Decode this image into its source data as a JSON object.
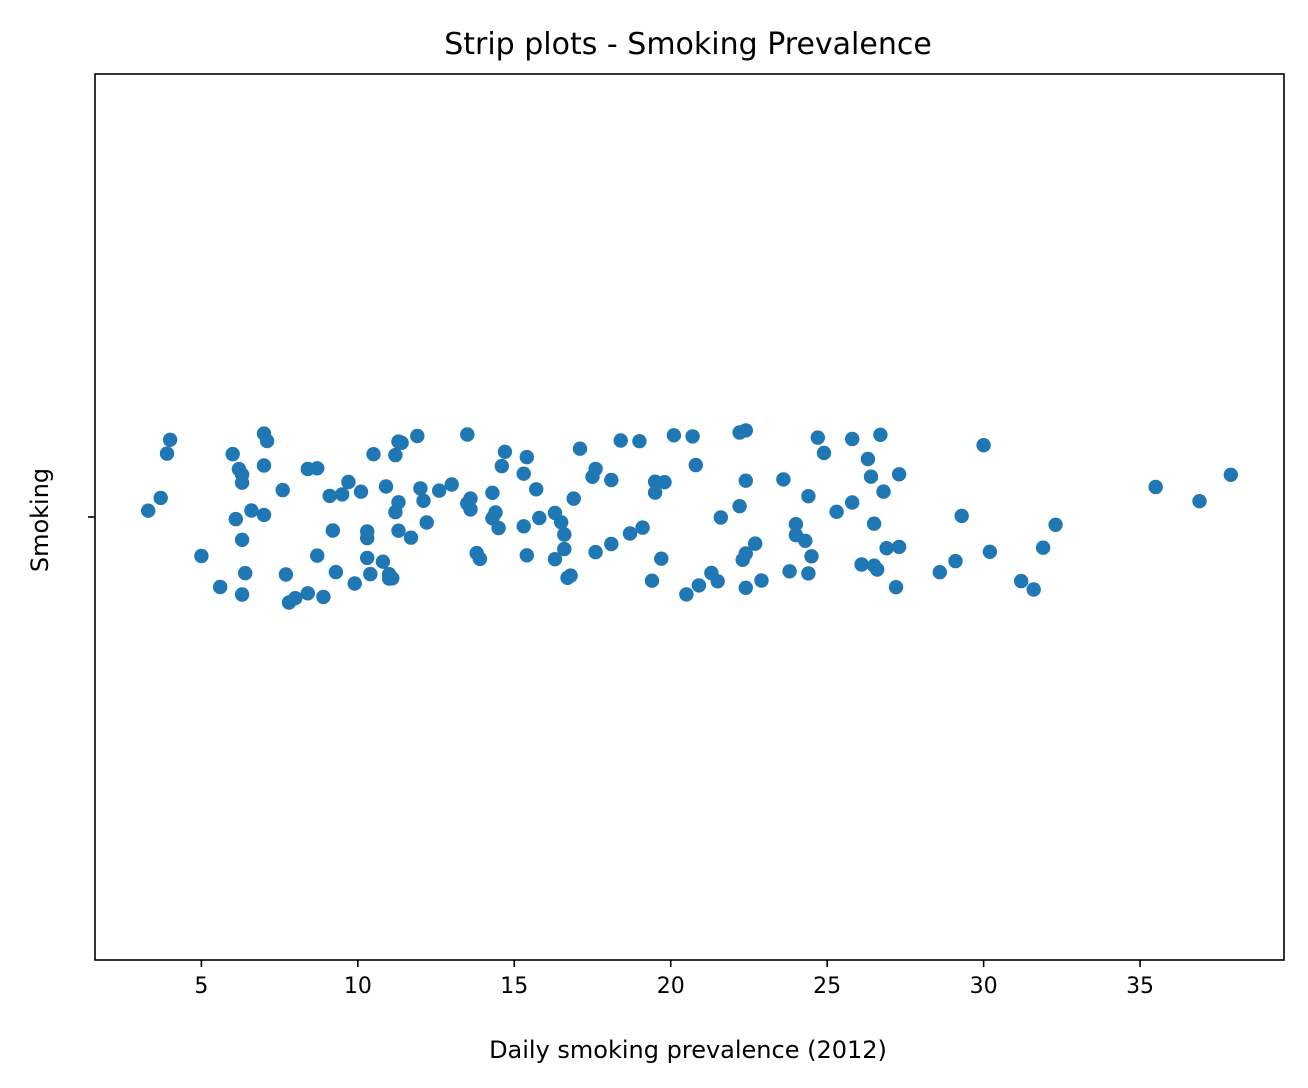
{
  "chart_data": {
    "type": "scatter",
    "title": "Strip plots - Smoking Prevalence",
    "xlabel": "Daily smoking prevalence (2012)",
    "ylabel": "Smoking",
    "category": "Smoking",
    "xlim": [
      1.6,
      39.6
    ],
    "xticks": [
      5,
      10,
      15,
      20,
      25,
      30,
      35
    ],
    "grid": false,
    "color": "#1f77b4",
    "series": [
      {
        "values": [
          3.3,
          3.7,
          3.9,
          4.0,
          5.0,
          5.6,
          6.0,
          6.1,
          6.2,
          6.3,
          6.3,
          6.3,
          6.3,
          6.4,
          6.6,
          7.0,
          7.0,
          7.0,
          7.1,
          7.6,
          7.7,
          7.8,
          8.0,
          8.4,
          8.4,
          8.7,
          8.7,
          8.9,
          9.1,
          9.2,
          9.3,
          9.5,
          9.7,
          9.9,
          10.1,
          10.3,
          10.3,
          10.3,
          10.4,
          10.5,
          10.8,
          10.9,
          11.0,
          11.0,
          11.1,
          11.2,
          11.2,
          11.3,
          11.3,
          11.3,
          11.4,
          11.7,
          11.9,
          12.0,
          12.1,
          12.2,
          12.6,
          13.0,
          13.5,
          13.5,
          13.6,
          13.6,
          13.8,
          13.9,
          14.3,
          14.3,
          14.4,
          14.5,
          14.6,
          14.7,
          15.3,
          15.3,
          15.4,
          15.4,
          15.7,
          15.8,
          16.3,
          16.3,
          16.5,
          16.6,
          16.6,
          16.7,
          16.8,
          16.9,
          17.1,
          17.5,
          17.6,
          17.6,
          18.1,
          18.1,
          18.4,
          18.7,
          19.0,
          19.1,
          19.4,
          19.5,
          19.5,
          19.7,
          19.8,
          20.1,
          20.5,
          20.7,
          20.8,
          20.9,
          21.3,
          21.5,
          21.6,
          22.2,
          22.2,
          22.3,
          22.4,
          22.4,
          22.4,
          22.4,
          22.7,
          22.9,
          23.6,
          23.8,
          24.0,
          24.0,
          24.3,
          24.4,
          24.4,
          24.5,
          24.7,
          24.9,
          25.3,
          25.8,
          25.8,
          26.1,
          26.3,
          26.4,
          26.5,
          26.5,
          26.6,
          26.7,
          26.8,
          26.9,
          27.2,
          27.3,
          27.3,
          28.6,
          29.1,
          29.3,
          30.0,
          30.2,
          31.2,
          31.6,
          31.9,
          32.3,
          35.5,
          36.9,
          37.9
        ]
      }
    ]
  }
}
